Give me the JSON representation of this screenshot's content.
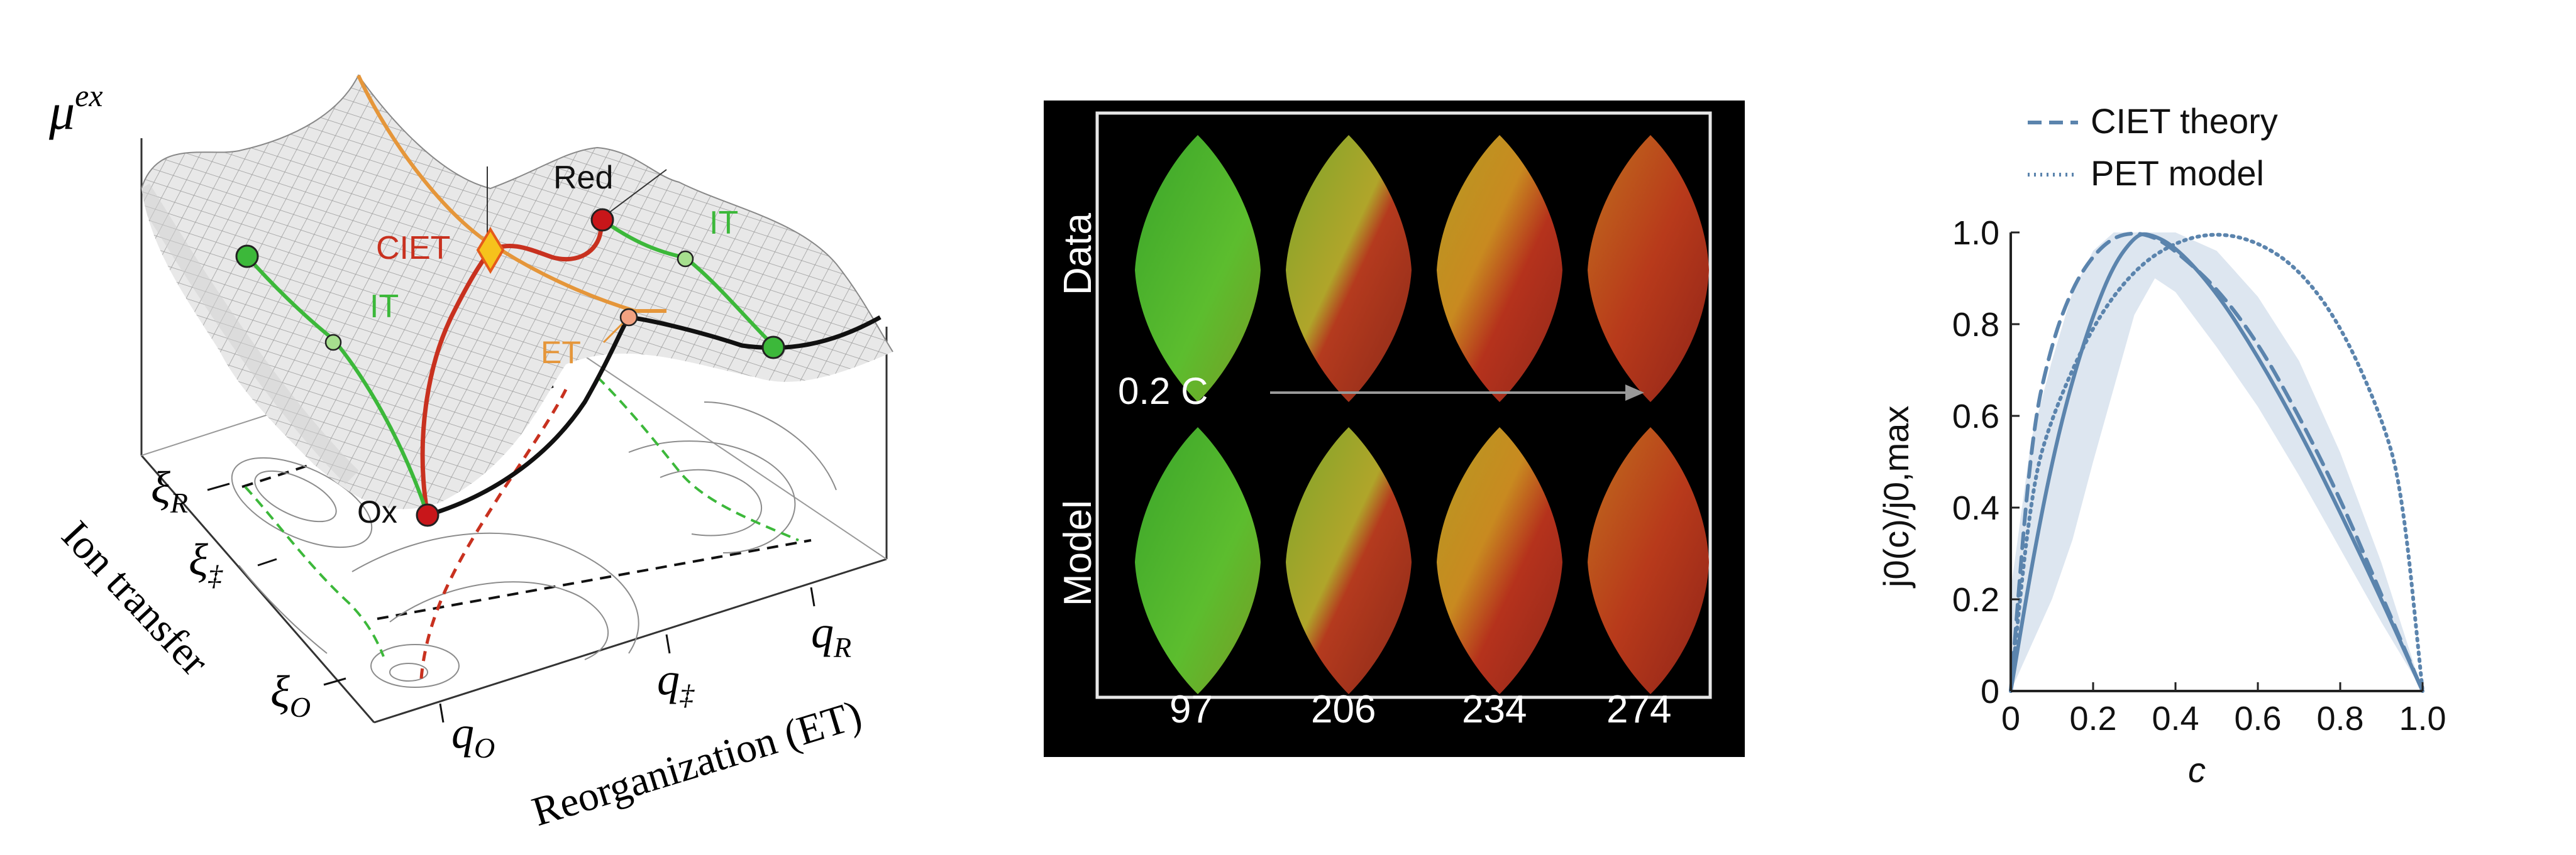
{
  "panel_a": {
    "y_axis_label": "μ",
    "y_axis_label_sup": "ex",
    "states": {
      "red": "Red",
      "ox": "Ox"
    },
    "paths": {
      "ciet": "CIET",
      "et": "ET",
      "it_left": "IT",
      "it_right": "IT"
    },
    "ion_transfer_ticks": [
      {
        "base": "ξ",
        "sub": "R"
      },
      {
        "base": "ξ",
        "sub": "‡"
      },
      {
        "base": "ξ",
        "sub": "O"
      }
    ],
    "ion_transfer_axis": "Ion transfer",
    "reorg_ticks": [
      {
        "base": "q",
        "sub": "O"
      },
      {
        "base": "q",
        "sub": "‡"
      },
      {
        "base": "q",
        "sub": "R"
      }
    ],
    "reorg_axis": "Reorganization (ET)",
    "colors": {
      "ciet": "#c8311f",
      "et": "#e5963a",
      "it": "#3cb83a",
      "black": "#111111"
    }
  },
  "panel_b": {
    "row_labels": [
      "Data",
      "Model"
    ],
    "rate_label": "0.2 C",
    "frame_labels": [
      "97",
      "206",
      "234",
      "274"
    ],
    "colors": {
      "background": "#000000",
      "start": "#35a52a",
      "end": "#b8261a"
    }
  },
  "chart_data": {
    "type": "line",
    "xlabel": "c",
    "ylabel": "j0(c)/j0,max",
    "xlim": [
      0,
      1
    ],
    "ylim": [
      0,
      1
    ],
    "x_ticks": [
      "0",
      "0.2",
      "0.4",
      "0.6",
      "0.8",
      "1.0"
    ],
    "y_ticks": [
      "0",
      "0.2",
      "0.4",
      "0.6",
      "0.8",
      "1.0"
    ],
    "legend_position": "top",
    "series": [
      {
        "name": "CIET theory",
        "style": "dashed",
        "x": [
          0,
          0.05,
          0.1,
          0.15,
          0.2,
          0.25,
          0.3,
          0.35,
          0.4,
          0.5,
          0.6,
          0.7,
          0.8,
          0.9,
          1.0
        ],
        "y": [
          0,
          0.56,
          0.76,
          0.88,
          0.95,
          0.99,
          1.0,
          0.99,
          0.96,
          0.88,
          0.76,
          0.6,
          0.42,
          0.21,
          0
        ]
      },
      {
        "name": "PET model",
        "style": "dotted",
        "x": [
          0,
          0.05,
          0.1,
          0.2,
          0.3,
          0.4,
          0.5,
          0.6,
          0.7,
          0.8,
          0.9,
          0.95,
          1.0
        ],
        "y": [
          0,
          0.44,
          0.6,
          0.8,
          0.92,
          0.98,
          1.0,
          0.98,
          0.92,
          0.8,
          0.6,
          0.44,
          0
        ]
      },
      {
        "name": "",
        "style": "solid",
        "x": [
          0,
          0.05,
          0.1,
          0.15,
          0.2,
          0.25,
          0.3,
          0.33,
          0.4,
          0.5,
          0.6,
          0.7,
          0.8,
          0.9,
          1.0
        ],
        "y": [
          0,
          0.27,
          0.5,
          0.68,
          0.82,
          0.93,
          0.99,
          1.0,
          0.97,
          0.87,
          0.73,
          0.57,
          0.39,
          0.2,
          0
        ]
      }
    ],
    "band": {
      "x": [
        0,
        0.05,
        0.1,
        0.15,
        0.2,
        0.25,
        0.3,
        0.35,
        0.4,
        0.5,
        0.6,
        0.7,
        0.8,
        0.9,
        1.0
      ],
      "upper": [
        0.22,
        0.55,
        0.72,
        0.87,
        0.96,
        1.0,
        1.0,
        1.0,
        1.0,
        0.96,
        0.86,
        0.72,
        0.52,
        0.28,
        0
      ],
      "lower": [
        0,
        0.1,
        0.2,
        0.33,
        0.5,
        0.66,
        0.82,
        0.9,
        0.87,
        0.75,
        0.62,
        0.47,
        0.31,
        0.15,
        0
      ]
    },
    "colors": {
      "line": "#5b84ad",
      "band": "#dde6f0"
    }
  }
}
